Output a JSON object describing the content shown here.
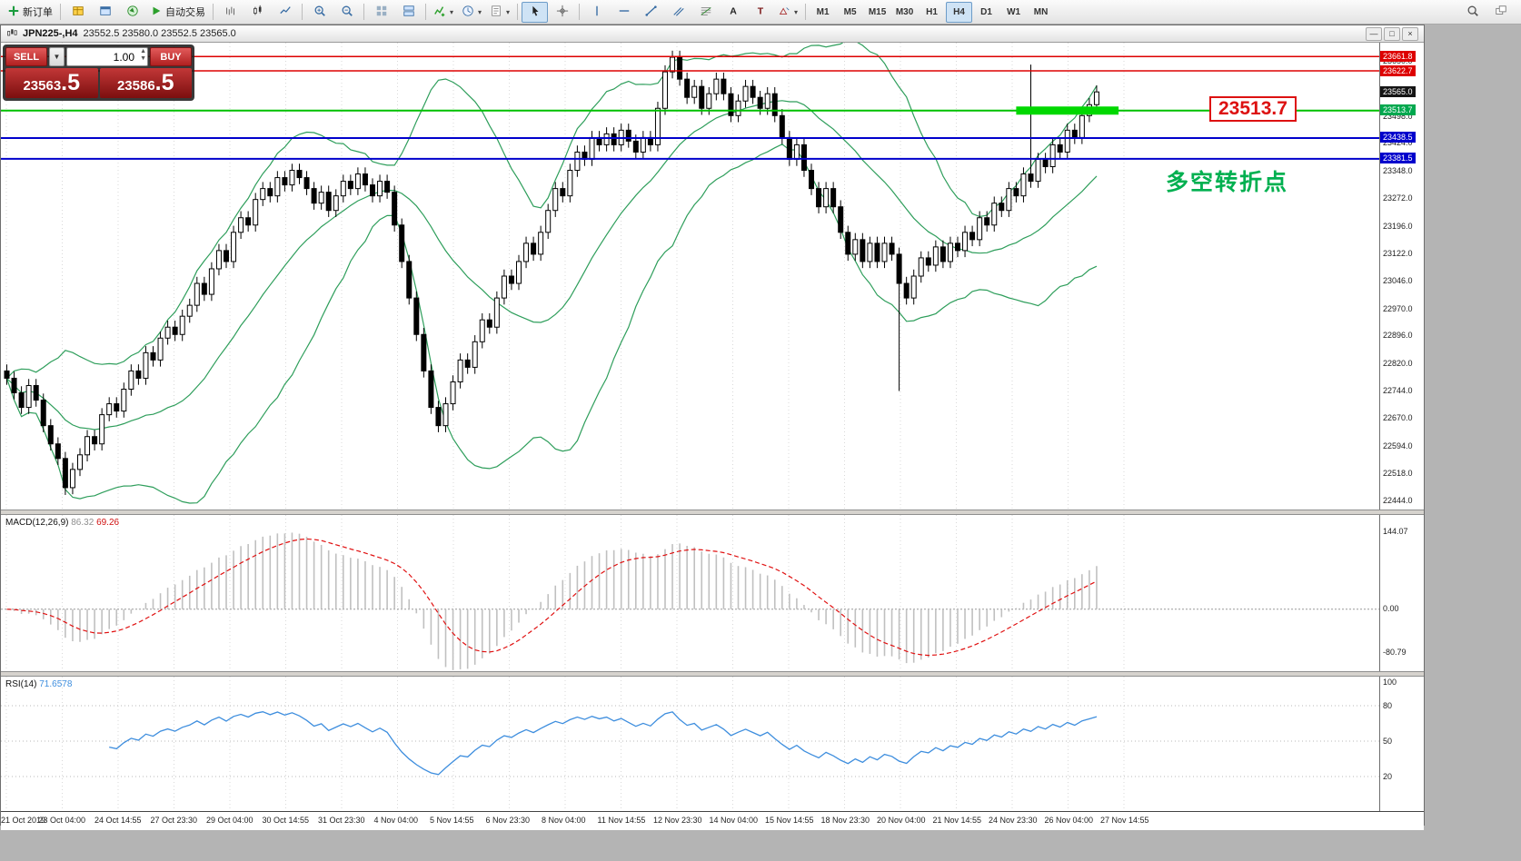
{
  "toolbar": {
    "groups": [
      [
        {
          "name": "new-order",
          "icon": "plus",
          "label": "新订单"
        }
      ],
      [
        {
          "name": "market-watch",
          "icon": "grid"
        },
        {
          "name": "data-window",
          "icon": "data-window"
        },
        {
          "name": "navigator",
          "icon": "navigator"
        },
        {
          "name": "autotrading",
          "icon": "play",
          "label": "自动交易"
        }
      ],
      [
        {
          "name": "bar-chart",
          "icon": "bars"
        },
        {
          "name": "candle-chart",
          "icon": "candles"
        },
        {
          "name": "line-chart",
          "icon": "linechart"
        }
      ],
      [
        {
          "name": "zoom-in",
          "icon": "zoom-in"
        },
        {
          "name": "zoom-out",
          "icon": "zoom-out"
        }
      ],
      [
        {
          "name": "auto-arrange",
          "icon": "grid2"
        },
        {
          "name": "tile-windows",
          "icon": "tile"
        }
      ],
      [
        {
          "name": "indicators",
          "icon": "indicator",
          "caret": true
        },
        {
          "name": "periods",
          "icon": "clock",
          "caret": true
        },
        {
          "name": "templates",
          "icon": "template",
          "caret": true
        }
      ],
      [
        {
          "name": "cursor",
          "icon": "cursor",
          "active": true
        },
        {
          "name": "crosshair",
          "icon": "crosshair"
        }
      ],
      [
        {
          "name": "vertical-line",
          "icon": "vline"
        },
        {
          "name": "horizontal-line",
          "icon": "hline"
        },
        {
          "name": "trendline",
          "icon": "trendline"
        },
        {
          "name": "equidistant-channel",
          "icon": "channel"
        },
        {
          "name": "fibonacci",
          "icon": "fibo"
        },
        {
          "name": "text",
          "icon": "text-a"
        },
        {
          "name": "text-label",
          "icon": "label-t"
        },
        {
          "name": "arrows",
          "icon": "shapes",
          "caret": true
        }
      ],
      [
        {
          "name": "tf-m1",
          "label": "M1",
          "tf": true
        },
        {
          "name": "tf-m5",
          "label": "M5",
          "tf": true
        },
        {
          "name": "tf-m15",
          "label": "M15",
          "tf": true
        },
        {
          "name": "tf-m30",
          "label": "M30",
          "tf": true
        },
        {
          "name": "tf-h1",
          "label": "H1",
          "tf": true
        },
        {
          "name": "tf-h4",
          "label": "H4",
          "tf": true,
          "active": true
        },
        {
          "name": "tf-d1",
          "label": "D1",
          "tf": true
        },
        {
          "name": "tf-w1",
          "label": "W1",
          "tf": true
        },
        {
          "name": "tf-mn",
          "label": "MN",
          "tf": true
        }
      ]
    ],
    "right_items": [
      {
        "name": "search",
        "icon": "search"
      },
      {
        "name": "window-list",
        "icon": "cascade"
      }
    ]
  },
  "window": {
    "title_symbol": "JPN225-,H4",
    "title_ohlc": "23552.5 23580.0 23552.5 23565.0",
    "controls": {
      "minimize": "—",
      "restore": "□",
      "close": "×"
    }
  },
  "trade_panel": {
    "sell_label": "SELL",
    "buy_label": "BUY",
    "volume": "1.00",
    "sell_price": "23563.5",
    "buy_price": "23586.5"
  },
  "price_axis": {
    "ticks": [
      "23650.0",
      "23498.0",
      "23424.0",
      "23348.0",
      "23272.0",
      "23196.0",
      "23122.0",
      "23046.0",
      "22970.0",
      "22896.0",
      "22820.0",
      "22744.0",
      "22670.0",
      "22594.0",
      "22518.0",
      "22444.0"
    ],
    "boxed": [
      {
        "text": "23661.8",
        "bg": "#dd0000"
      },
      {
        "text": "23622.7",
        "bg": "#dd0000"
      },
      {
        "text": "23565.0",
        "bg": "#151515"
      },
      {
        "text": "23513.7",
        "bg": "#00a84e"
      },
      {
        "text": "23438.5",
        "bg": "#0000cc"
      },
      {
        "text": "23381.5",
        "bg": "#0000cc"
      }
    ]
  },
  "hlines": [
    {
      "price": 23661.8,
      "color": "#dd0000",
      "width": 1.5
    },
    {
      "price": 23622.7,
      "color": "#dd0000",
      "width": 1.5
    },
    {
      "price": 23513.7,
      "color": "#00c000",
      "width": 2
    },
    {
      "price": 23438.5,
      "color": "#0000cc",
      "width": 2
    },
    {
      "price": 23381.5,
      "color": "#0000cc",
      "width": 2
    }
  ],
  "annotations": {
    "price_callout": "23513.7",
    "cn_note": "多空转折点",
    "segment": {
      "price": 23513.7,
      "from_bar": 138,
      "to_bar": 152,
      "color": "#00d800",
      "width": 9
    }
  },
  "time_axis": {
    "labels": [
      "21 Oct 2019",
      "23 Oct 04:00",
      "24 Oct 14:55",
      "27 Oct 23:30",
      "29 Oct 04:00",
      "30 Oct 14:55",
      "31 Oct 23:30",
      "4 Nov 04:00",
      "5 Nov 14:55",
      "6 Nov 23:30",
      "8 Nov 04:00",
      "11 Nov 14:55",
      "12 Nov 23:30",
      "14 Nov 04:00",
      "15 Nov 14:55",
      "18 Nov 23:30",
      "20 Nov 04:00",
      "21 Nov 14:55",
      "24 Nov 23:30",
      "26 Nov 04:00",
      "27 Nov 14:55"
    ]
  },
  "macd": {
    "name": "MACD(12,26,9)",
    "value_main": "86.32",
    "value_signal": "69.26",
    "axis": [
      "144.07",
      "0.00",
      "-80.79"
    ]
  },
  "rsi": {
    "name": "RSI(14)",
    "value": "71.6578",
    "axis": [
      "100",
      "80",
      "50",
      "20"
    ],
    "levels": [
      80,
      50,
      20
    ]
  },
  "chart_data": {
    "type": "candlestick",
    "symbol": "JPN225-",
    "timeframe": "H4",
    "quote": {
      "open": 23552.5,
      "high": 23580.0,
      "low": 23552.5,
      "close": 23565.0
    },
    "price_min": 22440,
    "price_max": 23680,
    "first_open": 22800,
    "wick": 18,
    "special_wicks": [
      {
        "index": 8,
        "low": 22460
      },
      {
        "index": 122,
        "low": 22745
      },
      {
        "index": 140,
        "high": 23640
      }
    ],
    "closes": [
      22780,
      22740,
      22700,
      22760,
      22720,
      22650,
      22600,
      22560,
      22480,
      22530,
      22570,
      22620,
      22600,
      22680,
      22710,
      22690,
      22750,
      22800,
      22780,
      22850,
      22830,
      22890,
      22920,
      22900,
      22950,
      22980,
      23040,
      23010,
      23080,
      23130,
      23100,
      23180,
      23220,
      23200,
      23270,
      23300,
      23280,
      23330,
      23310,
      23350,
      23330,
      23300,
      23260,
      23290,
      23240,
      23280,
      23320,
      23300,
      23340,
      23310,
      23280,
      23320,
      23290,
      23200,
      23100,
      23000,
      22900,
      22800,
      22700,
      22650,
      22710,
      22770,
      22830,
      22810,
      22880,
      22940,
      22920,
      23000,
      23060,
      23040,
      23100,
      23150,
      23120,
      23180,
      23240,
      23300,
      23280,
      23350,
      23400,
      23380,
      23440,
      23420,
      23450,
      23420,
      23460,
      23430,
      23400,
      23440,
      23420,
      23520,
      23620,
      23660,
      23600,
      23550,
      23580,
      23520,
      23560,
      23600,
      23560,
      23500,
      23540,
      23580,
      23550,
      23520,
      23560,
      23500,
      23440,
      23380,
      23420,
      23350,
      23300,
      23250,
      23300,
      23250,
      23180,
      23120,
      23160,
      23100,
      23150,
      23100,
      23150,
      23120,
      23040,
      23000,
      23060,
      23110,
      23090,
      23140,
      23100,
      23150,
      23130,
      23180,
      23160,
      23220,
      23200,
      23260,
      23240,
      23300,
      23280,
      23340,
      23320,
      23380,
      23360,
      23420,
      23400,
      23460,
      23440,
      23500,
      23530,
      23565
    ],
    "indicators": {
      "bollinger": {
        "period": 20,
        "deviation": 2
      },
      "macd": [
        12,
        26,
        9
      ],
      "rsi": 14
    }
  },
  "colors": {
    "band": "#2e9e5b",
    "up": "#ffffff",
    "down": "#000000",
    "grid": "#d9d9d9",
    "macd_hist": "#c0c0c0",
    "macd_signal": "#e01010",
    "rsi_line": "#3e8ede",
    "note_green": "#00b050",
    "callout_red": "#dd1111"
  }
}
